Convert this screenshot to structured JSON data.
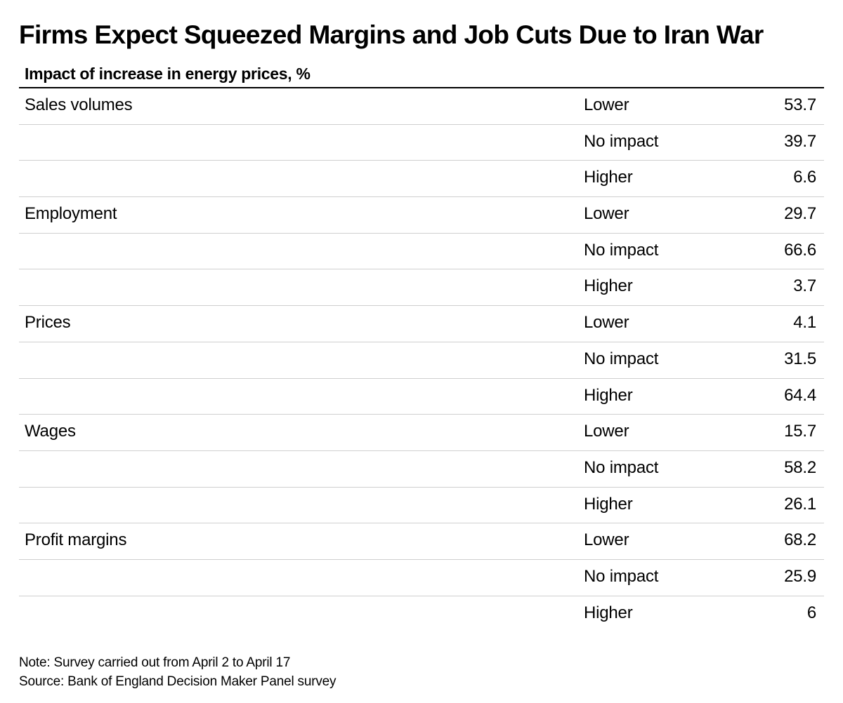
{
  "title": "Firms Expect Squeezed Margins and Job Cuts Due to Iran War",
  "subtitle": "Impact of increase in energy prices, %",
  "chart_data": {
    "type": "table",
    "title": "Firms Expect Squeezed Margins and Job Cuts Due to Iran War",
    "subtitle": "Impact of increase in energy prices, %",
    "rows": [
      {
        "category": "Sales volumes",
        "level": "Lower",
        "value": "53.7"
      },
      {
        "category": "",
        "level": "No impact",
        "value": "39.7"
      },
      {
        "category": "",
        "level": "Higher",
        "value": "6.6"
      },
      {
        "category": "Employment",
        "level": "Lower",
        "value": "29.7"
      },
      {
        "category": "",
        "level": "No impact",
        "value": "66.6"
      },
      {
        "category": "",
        "level": "Higher",
        "value": "3.7"
      },
      {
        "category": "Prices",
        "level": "Lower",
        "value": "4.1"
      },
      {
        "category": "",
        "level": "No impact",
        "value": "31.5"
      },
      {
        "category": "",
        "level": "Higher",
        "value": "64.4"
      },
      {
        "category": "Wages",
        "level": "Lower",
        "value": "15.7"
      },
      {
        "category": "",
        "level": "No impact",
        "value": "58.2"
      },
      {
        "category": "",
        "level": "Higher",
        "value": "26.1"
      },
      {
        "category": "Profit margins",
        "level": "Lower",
        "value": "68.2"
      },
      {
        "category": "",
        "level": "No impact",
        "value": "25.9"
      },
      {
        "category": "",
        "level": "Higher",
        "value": "6"
      }
    ]
  },
  "note": "Note: Survey carried out from April 2 to April 17",
  "source": "Source: Bank of England Decision Maker Panel survey"
}
